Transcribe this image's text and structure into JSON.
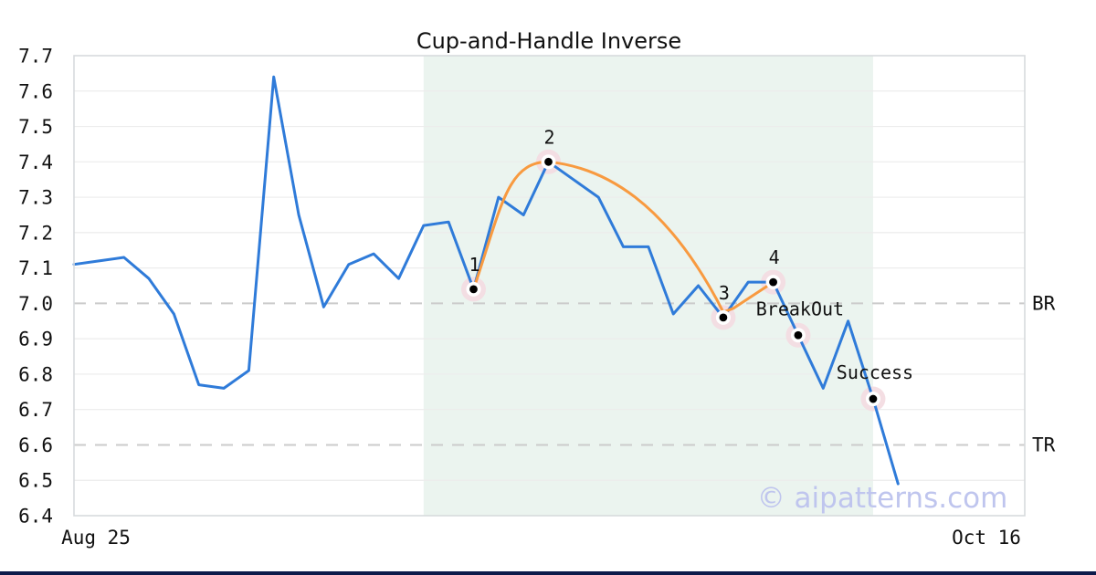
{
  "title": "Cup-and-Handle Inverse",
  "watermark": {
    "text": "© aipatterns.com",
    "color": "#bfc5ee"
  },
  "footer_bar_color": "#0d1b4b",
  "chart_data": {
    "type": "line",
    "title": "Cup-and-Handle Inverse",
    "xlabel": "",
    "ylabel": "",
    "ylim": [
      6.4,
      7.7
    ],
    "grid": true,
    "x_tick_labels": [
      "Aug 25",
      "Oct 16"
    ],
    "y_tick_labels": [
      "7.7",
      "7.6",
      "7.5",
      "7.4",
      "7.3",
      "7.2",
      "7.1",
      "7.0",
      "6.9",
      "6.8",
      "6.7",
      "6.6",
      "6.5",
      "6.4"
    ],
    "series": [
      {
        "name": "price",
        "color": "#2f7bd9",
        "values": [
          7.11,
          7.12,
          7.13,
          7.07,
          6.97,
          6.77,
          6.76,
          6.81,
          7.64,
          7.25,
          6.99,
          7.11,
          7.14,
          7.07,
          7.22,
          7.23,
          7.04,
          7.3,
          7.25,
          7.4,
          7.35,
          7.3,
          7.16,
          7.16,
          6.97,
          7.05,
          6.96,
          7.06,
          7.06,
          6.91,
          6.76,
          6.95,
          6.73,
          6.49
        ]
      },
      {
        "name": "pattern-overlay",
        "color": "#f89a40",
        "anchor_points": [
          {
            "role": "cup-start",
            "index": 16,
            "value": 7.04
          },
          {
            "role": "cup-top",
            "index": 19,
            "value": 7.4
          },
          {
            "role": "handle-low",
            "index": 26,
            "value": 6.96
          },
          {
            "role": "handle-end",
            "index": 28,
            "value": 7.06
          }
        ]
      }
    ],
    "annotations": [
      {
        "label": "1",
        "index": 16,
        "value": 7.04
      },
      {
        "label": "2",
        "index": 19,
        "value": 7.4
      },
      {
        "label": "3",
        "index": 26,
        "value": 6.96
      },
      {
        "label": "4",
        "index": 28,
        "value": 7.06
      },
      {
        "label": "BreakOut",
        "index": 29,
        "value": 6.91
      },
      {
        "label": "Success",
        "index": 32,
        "value": 6.73
      }
    ],
    "levels": [
      {
        "label": "BR",
        "value": 7.0
      },
      {
        "label": "TR",
        "value": 6.6
      }
    ],
    "highlight_region": {
      "start_index": 14,
      "end_index": 32,
      "color": "#ebf4ef"
    },
    "marker_style": {
      "halo_color": "#f3dce2",
      "ring_color": "#ffffff",
      "dot_color": "#000000"
    }
  }
}
